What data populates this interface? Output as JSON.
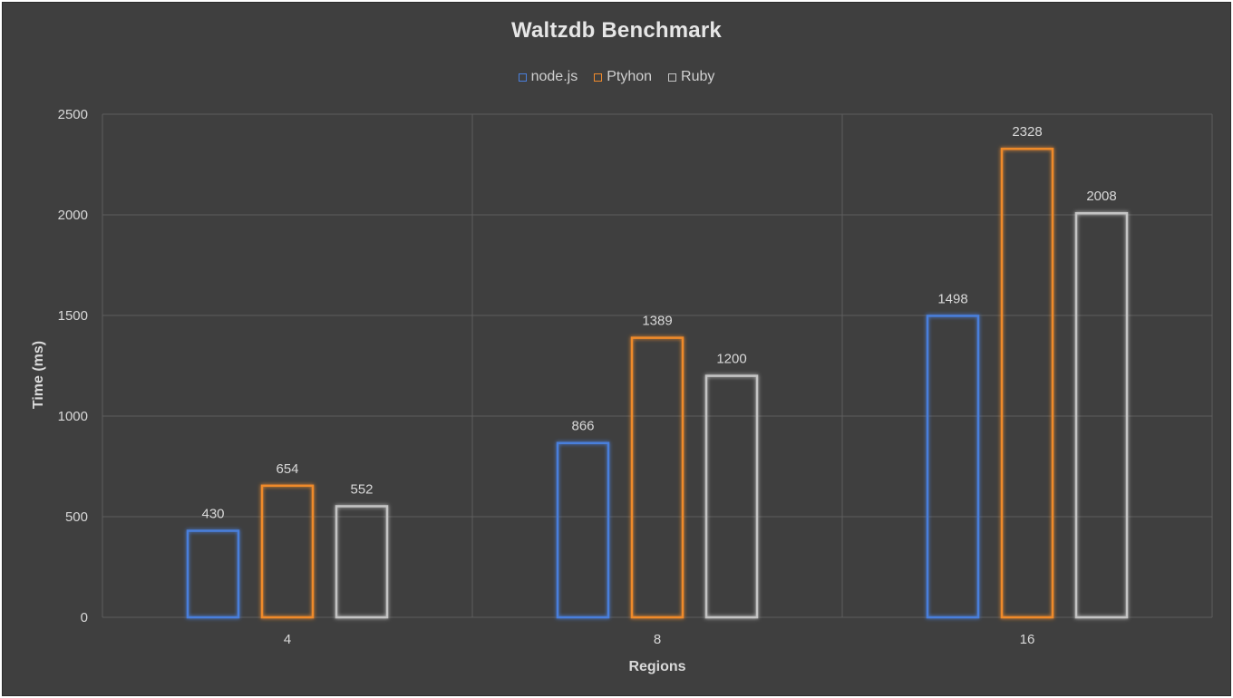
{
  "chart_data": {
    "type": "bar",
    "title": "Waltzdb Benchmark",
    "xlabel": "Regions",
    "ylabel": "Time (ms)",
    "categories": [
      "4",
      "8",
      "16"
    ],
    "series": [
      {
        "name": "node.js",
        "color": "#4a7fdc",
        "values": [
          430,
          866,
          1498
        ]
      },
      {
        "name": "Ptyhon",
        "color": "#ef8a2c",
        "values": [
          654,
          1389,
          2328
        ]
      },
      {
        "name": "Ruby",
        "color": "#c4c4c4",
        "values": [
          552,
          1200,
          2008
        ]
      }
    ],
    "ylim": [
      0,
      2500
    ],
    "yticks": [
      0,
      500,
      1000,
      1500,
      2000,
      2500
    ],
    "grid": true,
    "legend_position": "top",
    "bar_style": "outline with glow",
    "background": "#3f3f3f"
  }
}
